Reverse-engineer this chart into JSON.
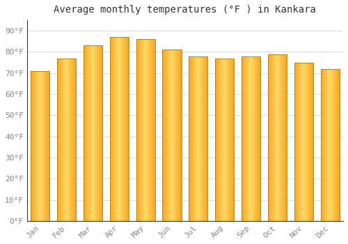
{
  "months": [
    "Jan",
    "Feb",
    "Mar",
    "Apr",
    "May",
    "Jun",
    "Jul",
    "Aug",
    "Sep",
    "Oct",
    "Nov",
    "Dec"
  ],
  "values": [
    71,
    77,
    83,
    87,
    86,
    81,
    78,
    77,
    78,
    79,
    75,
    72
  ],
  "title": "Average monthly temperatures (°F ) in Kankara",
  "ylabel_ticks": [
    "0°F",
    "10°F",
    "20°F",
    "30°F",
    "40°F",
    "50°F",
    "60°F",
    "70°F",
    "80°F",
    "90°F"
  ],
  "ytick_vals": [
    0,
    10,
    20,
    30,
    40,
    50,
    60,
    70,
    80,
    90
  ],
  "ylim": [
    0,
    95
  ],
  "background_color": "#ffffff",
  "grid_color": "#dddddd",
  "bar_color_center": "#FFD966",
  "bar_color_edge": "#F5A623",
  "bar_border_color": "#C8A000",
  "title_fontsize": 10,
  "tick_fontsize": 8,
  "bar_width": 0.72
}
